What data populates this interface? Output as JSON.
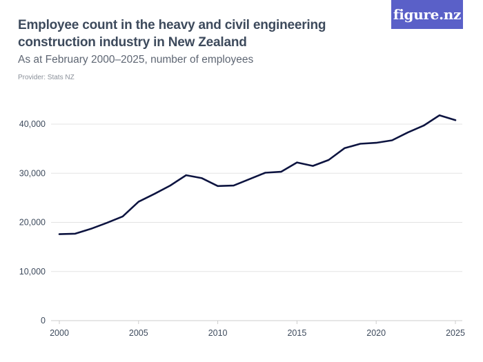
{
  "header": {
    "title": "Employee count in the heavy and civil engineering construction industry in New Zealand",
    "subtitle": "As at February 2000–2025, number of employees",
    "provider": "Provider: Stats NZ",
    "logo": "figure.nz"
  },
  "colors": {
    "line": "#0d1440",
    "grid": "#e3e3e3",
    "axis": "#cccccc",
    "logo_bg": "#5a60c8"
  },
  "chart_data": {
    "type": "line",
    "title": "Employee count in the heavy and civil engineering construction industry in New Zealand",
    "subtitle": "As at February 2000–2025, number of employees",
    "xlabel": "",
    "ylabel": "",
    "xlim": [
      2000,
      2025
    ],
    "ylim": [
      0,
      40000
    ],
    "x_ticks": [
      2000,
      2005,
      2010,
      2015,
      2020,
      2025
    ],
    "x_tick_labels": [
      "2000",
      "2005",
      "2010",
      "2015",
      "2020",
      "2025"
    ],
    "y_ticks": [
      0,
      10000,
      20000,
      30000,
      40000
    ],
    "y_tick_labels": [
      "0",
      "10,000",
      "20,000",
      "30,000",
      "40,000"
    ],
    "grid": true,
    "legend": "none",
    "series": [
      {
        "x": [
          2000,
          2001,
          2002,
          2003,
          2004,
          2005,
          2006,
          2007,
          2008,
          2009,
          2010,
          2011,
          2012,
          2013,
          2014,
          2015,
          2016,
          2017,
          2018,
          2019,
          2020,
          2021,
          2022,
          2023,
          2024,
          2025
        ],
        "values": [
          17600,
          17700,
          18700,
          19900,
          21200,
          24200,
          25800,
          27500,
          29600,
          29000,
          27400,
          27500,
          28800,
          30100,
          30300,
          32200,
          31500,
          32700,
          35100,
          36000,
          36200,
          36700,
          38300,
          39700,
          41800,
          40800
        ]
      }
    ]
  }
}
